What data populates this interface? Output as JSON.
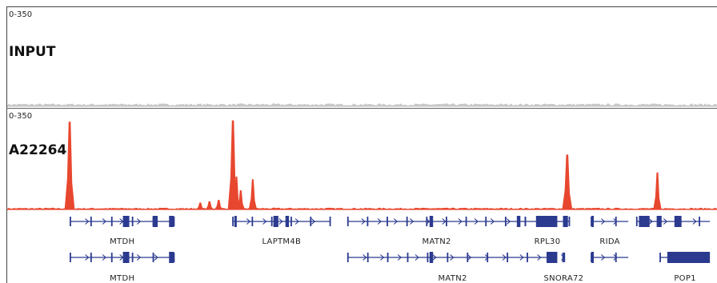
{
  "tracks": [
    {
      "name": "INPUT",
      "range": "0-350",
      "color": "#c8c8c8"
    },
    {
      "name": "A22264",
      "range": "0-350",
      "color": "#e8472f"
    }
  ],
  "gene_color": "#2b3a8f",
  "chart_data": {
    "type": "area",
    "title": "",
    "xlabel": "",
    "ylabel": "",
    "ylim": [
      0,
      350
    ],
    "grid": false,
    "legend": "none",
    "series": [
      {
        "name": "INPUT",
        "baseline": 8,
        "peaks": []
      },
      {
        "name": "A22264",
        "baseline": 5,
        "peaks": [
          {
            "x": 0.088,
            "value": 320
          },
          {
            "x": 0.272,
            "value": 25
          },
          {
            "x": 0.285,
            "value": 30
          },
          {
            "x": 0.298,
            "value": 35
          },
          {
            "x": 0.318,
            "value": 325
          },
          {
            "x": 0.323,
            "value": 120
          },
          {
            "x": 0.329,
            "value": 70
          },
          {
            "x": 0.346,
            "value": 110
          },
          {
            "x": 0.789,
            "value": 200
          },
          {
            "x": 0.916,
            "value": 135
          }
        ]
      }
    ],
    "genes": [
      {
        "label": "MTDH",
        "row": 1,
        "start": 0.089,
        "end": 0.235,
        "blocks": [
          0.163,
          0.172,
          0.205,
          0.212,
          0.228,
          0.235
        ],
        "strand": "+"
      },
      {
        "label": "LAPTM4B",
        "row": 1,
        "start": 0.318,
        "end": 0.455,
        "blocks": [
          0.32,
          0.323,
          0.375,
          0.382,
          0.392,
          0.397
        ],
        "strand": "+"
      },
      {
        "label": "MATN2",
        "row": 1,
        "start": 0.48,
        "end": 0.73,
        "blocks": [
          0.595,
          0.6,
          0.718,
          0.723
        ],
        "strand": "+"
      },
      {
        "label": "RPL30",
        "row": 1,
        "start": 0.73,
        "end": 0.792,
        "blocks": [
          0.745,
          0.775,
          0.783,
          0.79
        ],
        "strand": "+"
      },
      {
        "label": "RIDA",
        "row": 1,
        "start": 0.823,
        "end": 0.875,
        "blocks": [
          0.823,
          0.826
        ],
        "strand": "+"
      },
      {
        "label": "",
        "row": 1,
        "start": 0.887,
        "end": 0.99,
        "blocks": [
          0.89,
          0.905,
          0.915,
          0.922,
          0.94,
          0.95
        ],
        "strand": "+"
      },
      {
        "label": "MTDH",
        "row": 2,
        "start": 0.089,
        "end": 0.235,
        "blocks": [
          0.163,
          0.172,
          0.228,
          0.235
        ],
        "strand": "+"
      },
      {
        "label": "MATN2",
        "row": 2,
        "start": 0.48,
        "end": 0.775,
        "blocks": [
          0.595,
          0.6,
          0.76,
          0.775
        ],
        "strand": "+"
      },
      {
        "label": "SNORA72",
        "row": 2,
        "start": 0.783,
        "end": 0.785,
        "blocks": [],
        "strand": "+"
      },
      {
        "label": "",
        "row": 2,
        "start": 0.823,
        "end": 0.875,
        "blocks": [
          0.823,
          0.826
        ],
        "strand": "+"
      },
      {
        "label": "POP1",
        "row": 2,
        "start": 0.92,
        "end": 0.99,
        "blocks": [
          0.93,
          0.99
        ],
        "strand": "+"
      }
    ]
  }
}
